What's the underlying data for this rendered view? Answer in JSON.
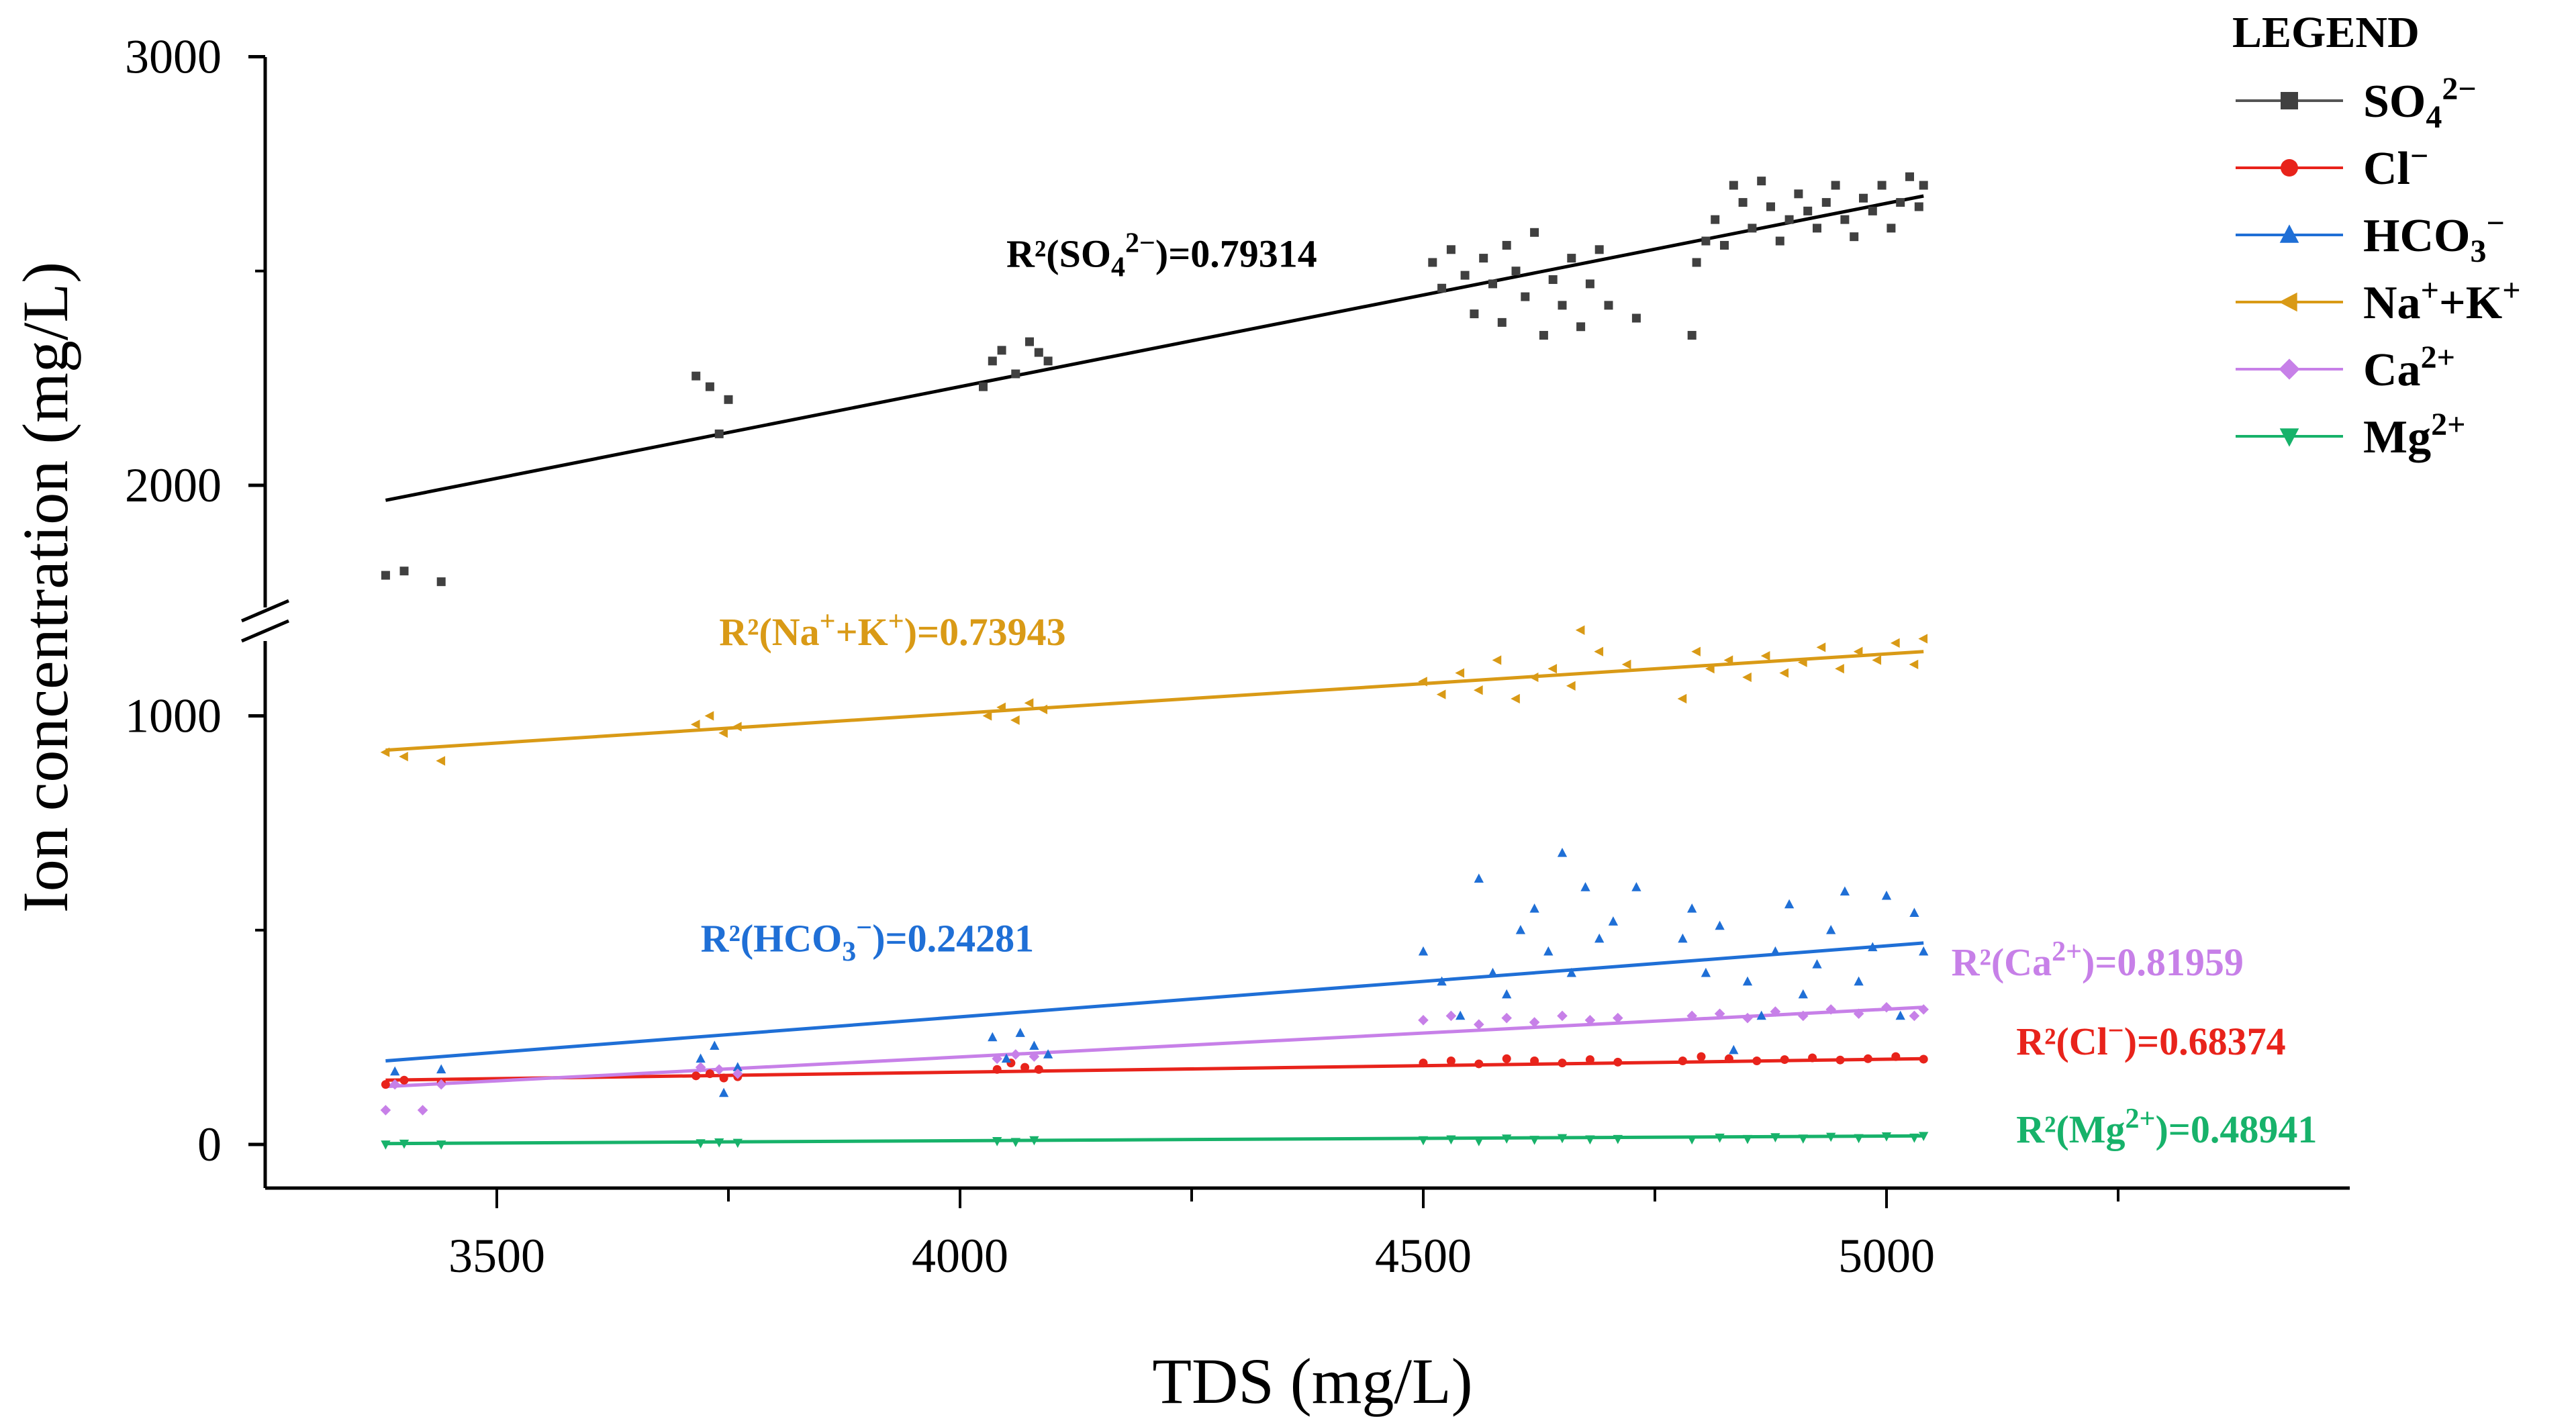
{
  "chart_data": {
    "type": "scatter",
    "title": "",
    "xlabel": "TDS (mg/L)",
    "ylabel": "Ion concentration (mg/L)",
    "xlim": [
      3250,
      5500
    ],
    "x_ticks": [
      3500,
      4000,
      4500,
      5000
    ],
    "y_ticks": [
      0,
      1000,
      2000,
      3000
    ],
    "y_axis_break": {
      "lower_range": [
        -150,
        1300
      ],
      "upper_range": [
        1700,
        3000
      ]
    },
    "legend": {
      "title": "LEGEND",
      "position": "top-right"
    },
    "series": [
      {
        "key": "so4",
        "name": "SO₄²⁻",
        "name_parts": [
          "SO",
          "4",
          "2−"
        ],
        "color": "#404040",
        "marker": "square",
        "r2_text": "R²(SO₄²⁻)=0.79314",
        "r2_parts": [
          "R²(SO",
          "4",
          "2−",
          ")=0.79314"
        ],
        "r2_anchor": [
          4050,
          2510
        ],
        "fit": [
          [
            3380,
            1965
          ],
          [
            5040,
            2675
          ]
        ],
        "points": [
          [
            3380,
            1790
          ],
          [
            3400,
            1800
          ],
          [
            3440,
            1775
          ],
          [
            3715,
            2255
          ],
          [
            3730,
            2230
          ],
          [
            3740,
            2120
          ],
          [
            3750,
            2200
          ],
          [
            4025,
            2230
          ],
          [
            4035,
            2290
          ],
          [
            4045,
            2315
          ],
          [
            4060,
            2260
          ],
          [
            4075,
            2335
          ],
          [
            4085,
            2310
          ],
          [
            4095,
            2290
          ],
          [
            4510,
            2520
          ],
          [
            4520,
            2460
          ],
          [
            4530,
            2550
          ],
          [
            4545,
            2490
          ],
          [
            4555,
            2400
          ],
          [
            4565,
            2530
          ],
          [
            4575,
            2470
          ],
          [
            4585,
            2380
          ],
          [
            4590,
            2560
          ],
          [
            4600,
            2500
          ],
          [
            4610,
            2440
          ],
          [
            4620,
            2590
          ],
          [
            4630,
            2350
          ],
          [
            4640,
            2480
          ],
          [
            4650,
            2420
          ],
          [
            4660,
            2530
          ],
          [
            4670,
            2370
          ],
          [
            4680,
            2470
          ],
          [
            4690,
            2550
          ],
          [
            4700,
            2420
          ],
          [
            4730,
            2390
          ],
          [
            4790,
            2350
          ],
          [
            4795,
            2520
          ],
          [
            4805,
            2570
          ],
          [
            4815,
            2620
          ],
          [
            4825,
            2560
          ],
          [
            4835,
            2700
          ],
          [
            4845,
            2660
          ],
          [
            4855,
            2600
          ],
          [
            4865,
            2710
          ],
          [
            4875,
            2650
          ],
          [
            4885,
            2570
          ],
          [
            4895,
            2620
          ],
          [
            4905,
            2680
          ],
          [
            4915,
            2640
          ],
          [
            4925,
            2600
          ],
          [
            4935,
            2660
          ],
          [
            4945,
            2700
          ],
          [
            4955,
            2620
          ],
          [
            4965,
            2580
          ],
          [
            4975,
            2670
          ],
          [
            4985,
            2640
          ],
          [
            4995,
            2700
          ],
          [
            5005,
            2600
          ],
          [
            5015,
            2660
          ],
          [
            5025,
            2720
          ],
          [
            5035,
            2650
          ],
          [
            5040,
            2700
          ]
        ]
      },
      {
        "key": "cl",
        "name": "Cl⁻",
        "name_parts": [
          "Cl",
          "",
          "−"
        ],
        "color": "#e8231b",
        "marker": "circle",
        "r2_text": "R²(Cl⁻)=0.68374",
        "r2_parts": [
          "R²(Cl",
          "",
          "−",
          ")=0.68374"
        ],
        "r2_anchor": [
          5140,
          210
        ],
        "fit": [
          [
            3380,
            150
          ],
          [
            5040,
            200
          ]
        ],
        "points": [
          [
            3380,
            140
          ],
          [
            3400,
            150
          ],
          [
            3440,
            145
          ],
          [
            3715,
            160
          ],
          [
            3730,
            165
          ],
          [
            3745,
            155
          ],
          [
            3760,
            158
          ],
          [
            4040,
            175
          ],
          [
            4055,
            190
          ],
          [
            4070,
            180
          ],
          [
            4085,
            175
          ],
          [
            4500,
            190
          ],
          [
            4530,
            195
          ],
          [
            4560,
            188
          ],
          [
            4590,
            200
          ],
          [
            4620,
            195
          ],
          [
            4650,
            190
          ],
          [
            4680,
            198
          ],
          [
            4710,
            192
          ],
          [
            4780,
            195
          ],
          [
            4800,
            205
          ],
          [
            4830,
            200
          ],
          [
            4860,
            195
          ],
          [
            4890,
            198
          ],
          [
            4920,
            202
          ],
          [
            4950,
            197
          ],
          [
            4980,
            200
          ],
          [
            5010,
            205
          ],
          [
            5040,
            199
          ]
        ]
      },
      {
        "key": "hco3",
        "name": "HCO₃⁻",
        "name_parts": [
          "HCO",
          "3",
          "−"
        ],
        "color": "#1f6fd6",
        "marker": "triangle-up",
        "r2_text": "R²(HCO₃⁻)=0.24281",
        "r2_parts": [
          "R²(HCO",
          "3",
          "−",
          ")=0.24281"
        ],
        "r2_anchor": [
          3720,
          450
        ],
        "fit": [
          [
            3380,
            195
          ],
          [
            5040,
            470
          ]
        ],
        "points": [
          [
            3390,
            170
          ],
          [
            3440,
            175
          ],
          [
            3720,
            200
          ],
          [
            3735,
            230
          ],
          [
            3745,
            120
          ],
          [
            3760,
            180
          ],
          [
            4035,
            250
          ],
          [
            4050,
            200
          ],
          [
            4065,
            260
          ],
          [
            4080,
            230
          ],
          [
            4095,
            210
          ],
          [
            4500,
            450
          ],
          [
            4520,
            380
          ],
          [
            4540,
            300
          ],
          [
            4560,
            620
          ],
          [
            4575,
            400
          ],
          [
            4590,
            350
          ],
          [
            4605,
            500
          ],
          [
            4620,
            550
          ],
          [
            4635,
            450
          ],
          [
            4650,
            680
          ],
          [
            4660,
            400
          ],
          [
            4675,
            600
          ],
          [
            4690,
            480
          ],
          [
            4705,
            520
          ],
          [
            4730,
            600
          ],
          [
            4780,
            480
          ],
          [
            4790,
            550
          ],
          [
            4805,
            400
          ],
          [
            4820,
            510
          ],
          [
            4835,
            220
          ],
          [
            4850,
            380
          ],
          [
            4865,
            300
          ],
          [
            4880,
            450
          ],
          [
            4895,
            560
          ],
          [
            4910,
            350
          ],
          [
            4925,
            420
          ],
          [
            4940,
            500
          ],
          [
            4955,
            590
          ],
          [
            4970,
            380
          ],
          [
            4985,
            460
          ],
          [
            5000,
            580
          ],
          [
            5015,
            300
          ],
          [
            5030,
            540
          ],
          [
            5040,
            450
          ]
        ]
      },
      {
        "key": "nak",
        "name": "Na⁺+K⁺",
        "name_parts": [
          "Na",
          "",
          "+",
          "+K",
          "+"
        ],
        "color": "#d99a16",
        "marker": "triangle-left",
        "r2_text": "R²(Na⁺+K⁺)=0.73943",
        "r2_parts": [
          "R²(Na",
          "+",
          "+K",
          "+",
          ")=0.73943"
        ],
        "r2_anchor": [
          3740,
          1165
        ],
        "fit": [
          [
            3380,
            920
          ],
          [
            5040,
            1150
          ]
        ],
        "points": [
          [
            3380,
            915
          ],
          [
            3400,
            905
          ],
          [
            3440,
            895
          ],
          [
            3715,
            980
          ],
          [
            3730,
            1000
          ],
          [
            3745,
            960
          ],
          [
            3760,
            975
          ],
          [
            4030,
            1000
          ],
          [
            4045,
            1020
          ],
          [
            4060,
            990
          ],
          [
            4075,
            1030
          ],
          [
            4090,
            1015
          ],
          [
            4500,
            1080
          ],
          [
            4520,
            1050
          ],
          [
            4540,
            1100
          ],
          [
            4560,
            1060
          ],
          [
            4580,
            1130
          ],
          [
            4600,
            1040
          ],
          [
            4620,
            1090
          ],
          [
            4640,
            1110
          ],
          [
            4660,
            1070
          ],
          [
            4670,
            1200
          ],
          [
            4690,
            1150
          ],
          [
            4720,
            1120
          ],
          [
            4780,
            1040
          ],
          [
            4795,
            1150
          ],
          [
            4810,
            1110
          ],
          [
            4830,
            1130
          ],
          [
            4850,
            1090
          ],
          [
            4870,
            1140
          ],
          [
            4890,
            1100
          ],
          [
            4910,
            1125
          ],
          [
            4930,
            1160
          ],
          [
            4950,
            1110
          ],
          [
            4970,
            1150
          ],
          [
            4990,
            1130
          ],
          [
            5010,
            1170
          ],
          [
            5030,
            1120
          ],
          [
            5040,
            1180
          ]
        ]
      },
      {
        "key": "ca",
        "name": "Ca²⁺",
        "name_parts": [
          "Ca",
          "",
          "2+"
        ],
        "color": "#c780e8",
        "marker": "diamond",
        "r2_text": "R²(Ca²⁺)=0.81959",
        "r2_parts": [
          "R²(Ca",
          "",
          "2+",
          ")=0.81959"
        ],
        "r2_anchor": [
          5070,
          395
        ],
        "fit": [
          [
            3380,
            135
          ],
          [
            5040,
            320
          ]
        ],
        "points": [
          [
            3380,
            80
          ],
          [
            3390,
            140
          ],
          [
            3420,
            80
          ],
          [
            3440,
            140
          ],
          [
            3720,
            180
          ],
          [
            3740,
            175
          ],
          [
            3760,
            165
          ],
          [
            4040,
            200
          ],
          [
            4060,
            210
          ],
          [
            4080,
            205
          ],
          [
            4500,
            290
          ],
          [
            4530,
            300
          ],
          [
            4560,
            280
          ],
          [
            4590,
            295
          ],
          [
            4620,
            285
          ],
          [
            4650,
            300
          ],
          [
            4680,
            290
          ],
          [
            4710,
            295
          ],
          [
            4790,
            300
          ],
          [
            4820,
            305
          ],
          [
            4850,
            295
          ],
          [
            4880,
            310
          ],
          [
            4910,
            300
          ],
          [
            4940,
            315
          ],
          [
            4970,
            305
          ],
          [
            5000,
            320
          ],
          [
            5030,
            300
          ],
          [
            5040,
            315
          ]
        ]
      },
      {
        "key": "mg",
        "name": "Mg²⁺",
        "name_parts": [
          "Mg",
          "",
          "2+"
        ],
        "color": "#17b26a",
        "marker": "triangle-down",
        "r2_text": "R²(Mg²⁺)=0.48941",
        "r2_parts": [
          "R²(Mg",
          "",
          "2+",
          ")=0.48941"
        ],
        "r2_anchor": [
          5140,
          5
        ],
        "fit": [
          [
            3380,
            2
          ],
          [
            5040,
            20
          ]
        ],
        "points": [
          [
            3380,
            0
          ],
          [
            3400,
            2
          ],
          [
            3440,
            0
          ],
          [
            3720,
            3
          ],
          [
            3740,
            5
          ],
          [
            3760,
            4
          ],
          [
            4040,
            8
          ],
          [
            4060,
            6
          ],
          [
            4080,
            10
          ],
          [
            4500,
            10
          ],
          [
            4530,
            12
          ],
          [
            4560,
            8
          ],
          [
            4590,
            14
          ],
          [
            4620,
            11
          ],
          [
            4650,
            15
          ],
          [
            4680,
            12
          ],
          [
            4710,
            13
          ],
          [
            4790,
            12
          ],
          [
            4820,
            16
          ],
          [
            4850,
            13
          ],
          [
            4880,
            17
          ],
          [
            4910,
            14
          ],
          [
            4940,
            18
          ],
          [
            4970,
            15
          ],
          [
            5000,
            19
          ],
          [
            5030,
            16
          ],
          [
            5040,
            20
          ]
        ]
      }
    ]
  }
}
